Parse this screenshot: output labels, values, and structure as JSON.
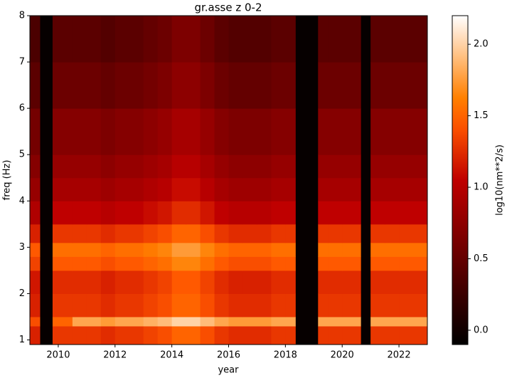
{
  "chart_data": {
    "type": "heatmap",
    "title": "gr.asse z 0-2",
    "xlabel": "year",
    "ylabel": "freq (Hz)",
    "colormap": "gist_heat",
    "xlim": [
      2009,
      2023
    ],
    "xticks": [
      2010,
      2012,
      2014,
      2016,
      2018,
      2020,
      2022
    ],
    "ylim": [
      0.9,
      8
    ],
    "yticks": [
      1,
      2,
      3,
      4,
      5,
      6,
      7,
      8
    ],
    "x_edges": [
      2009.0,
      2009.35,
      2009.8,
      2010.5,
      2011,
      2011.5,
      2012,
      2012.5,
      2013,
      2013.5,
      2014,
      2014.5,
      2015,
      2015.5,
      2016,
      2016.5,
      2017,
      2017.5,
      2018,
      2018.35,
      2019.15,
      2019.5,
      2020,
      2020.65,
      2021.0,
      2021.5,
      2022,
      2023
    ],
    "y_edges": [
      0.9,
      1.3,
      1.5,
      2.0,
      2.5,
      2.8,
      3.1,
      3.5,
      4.0,
      4.5,
      5,
      6,
      7,
      8
    ],
    "z": [
      [
        1.2,
        null,
        1.3,
        1.3,
        1.3,
        1.25,
        1.3,
        1.3,
        1.35,
        1.4,
        1.5,
        1.5,
        1.4,
        1.3,
        1.25,
        1.25,
        1.25,
        1.3,
        1.3,
        null,
        1.3,
        1.3,
        1.3,
        null,
        1.3,
        1.3,
        1.3
      ],
      [
        1.4,
        null,
        1.5,
        1.8,
        1.8,
        1.75,
        1.8,
        1.8,
        1.85,
        1.9,
        2.0,
        2.0,
        1.9,
        1.8,
        1.75,
        1.75,
        1.75,
        1.8,
        1.8,
        null,
        1.8,
        1.8,
        1.8,
        null,
        1.8,
        1.8,
        1.8
      ],
      [
        1.2,
        null,
        1.3,
        1.3,
        1.3,
        1.25,
        1.3,
        1.3,
        1.35,
        1.4,
        1.5,
        1.5,
        1.4,
        1.3,
        1.25,
        1.25,
        1.25,
        1.3,
        1.3,
        null,
        1.3,
        1.3,
        1.3,
        null,
        1.3,
        1.3,
        1.3
      ],
      [
        1.15,
        null,
        1.25,
        1.25,
        1.25,
        1.2,
        1.25,
        1.25,
        1.3,
        1.35,
        1.45,
        1.45,
        1.35,
        1.25,
        1.2,
        1.2,
        1.2,
        1.25,
        1.25,
        null,
        1.25,
        1.25,
        1.25,
        null,
        1.25,
        1.25,
        1.25
      ],
      [
        1.35,
        null,
        1.45,
        1.45,
        1.45,
        1.4,
        1.45,
        1.45,
        1.5,
        1.55,
        1.65,
        1.65,
        1.55,
        1.45,
        1.4,
        1.4,
        1.4,
        1.45,
        1.45,
        null,
        1.45,
        1.45,
        1.45,
        null,
        1.45,
        1.45,
        1.45
      ],
      [
        1.45,
        null,
        1.55,
        1.55,
        1.55,
        1.5,
        1.55,
        1.55,
        1.6,
        1.65,
        1.75,
        1.75,
        1.65,
        1.55,
        1.5,
        1.5,
        1.5,
        1.55,
        1.55,
        null,
        1.55,
        1.55,
        1.55,
        null,
        1.55,
        1.55,
        1.55
      ],
      [
        1.2,
        null,
        1.3,
        1.3,
        1.3,
        1.25,
        1.3,
        1.3,
        1.35,
        1.4,
        1.5,
        1.5,
        1.4,
        1.3,
        1.25,
        1.25,
        1.25,
        1.3,
        1.3,
        null,
        1.3,
        1.3,
        1.3,
        null,
        1.3,
        1.3,
        1.3
      ],
      [
        0.95,
        null,
        1.05,
        1.05,
        1.05,
        1.0,
        1.05,
        1.05,
        1.1,
        1.15,
        1.25,
        1.25,
        1.15,
        1.05,
        1.0,
        1.0,
        1.0,
        1.05,
        1.05,
        null,
        1.05,
        1.05,
        1.05,
        null,
        1.05,
        1.05,
        1.05
      ],
      [
        0.8,
        null,
        0.9,
        0.9,
        0.9,
        0.85,
        0.9,
        0.9,
        0.95,
        1.0,
        1.1,
        1.1,
        1.0,
        0.9,
        0.85,
        0.85,
        0.85,
        0.9,
        0.9,
        null,
        0.9,
        0.9,
        0.9,
        null,
        0.9,
        0.9,
        0.9
      ],
      [
        0.7,
        null,
        0.8,
        0.8,
        0.8,
        0.75,
        0.8,
        0.8,
        0.85,
        0.9,
        1.0,
        1.0,
        0.9,
        0.8,
        0.75,
        0.75,
        0.75,
        0.8,
        0.8,
        null,
        0.8,
        0.8,
        0.8,
        null,
        0.8,
        0.8,
        0.8
      ],
      [
        0.6,
        null,
        0.7,
        0.7,
        0.7,
        0.65,
        0.7,
        0.7,
        0.75,
        0.8,
        0.9,
        0.9,
        0.8,
        0.7,
        0.65,
        0.65,
        0.65,
        0.7,
        0.7,
        null,
        0.7,
        0.7,
        0.7,
        null,
        0.7,
        0.7,
        0.7
      ],
      [
        0.45,
        null,
        0.55,
        0.55,
        0.55,
        0.5,
        0.55,
        0.55,
        0.6,
        0.65,
        0.75,
        0.75,
        0.65,
        0.55,
        0.5,
        0.5,
        0.5,
        0.55,
        0.55,
        null,
        0.55,
        0.55,
        0.55,
        null,
        0.55,
        0.55,
        0.55
      ],
      [
        0.35,
        null,
        0.45,
        0.45,
        0.45,
        0.4,
        0.45,
        0.45,
        0.5,
        0.55,
        0.65,
        0.65,
        0.55,
        0.45,
        0.4,
        0.4,
        0.4,
        0.45,
        0.45,
        null,
        0.45,
        0.45,
        0.45,
        null,
        0.45,
        0.45,
        0.45
      ]
    ],
    "colorbar": {
      "label": "log10(nm**2/s)",
      "lim": [
        -0.1,
        2.2
      ],
      "ticks": [
        {
          "value": 0,
          "label": "0.0"
        },
        {
          "value": 0.5,
          "label": "0.5"
        },
        {
          "value": 1,
          "label": "1.0"
        },
        {
          "value": 1.5,
          "label": "1.5"
        },
        {
          "value": 2,
          "label": "2.0"
        }
      ]
    }
  }
}
